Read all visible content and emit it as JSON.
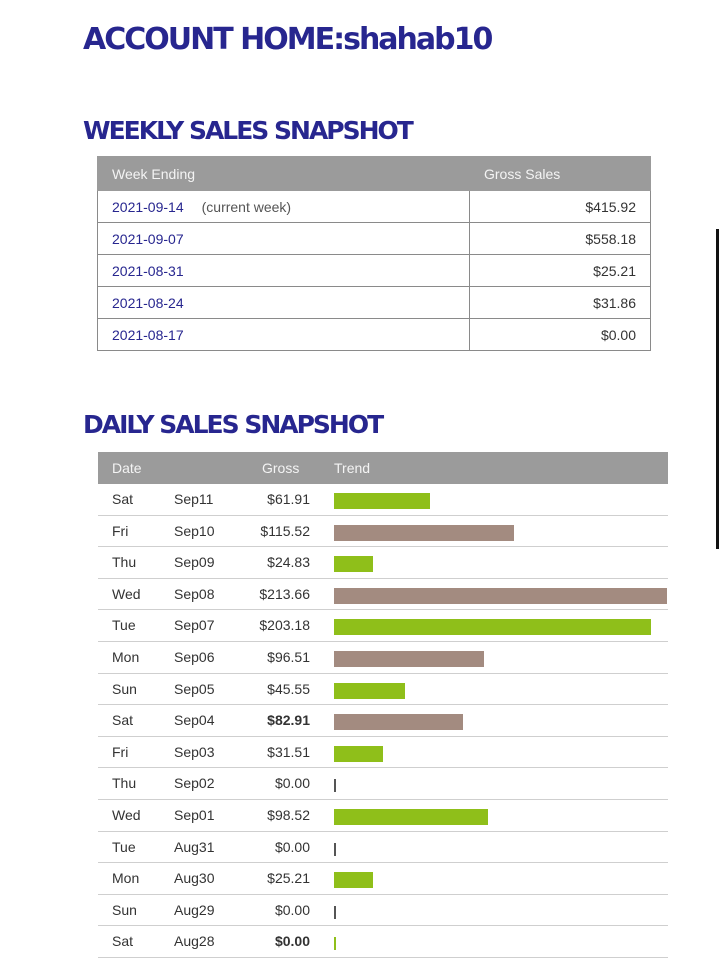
{
  "page": {
    "title": "ACCOUNT HOME:shahab10"
  },
  "weekly": {
    "heading": "WEEKLY SALES SNAPSHOT",
    "columns": {
      "week_ending": "Week Ending",
      "gross_sales": "Gross Sales"
    },
    "rows": [
      {
        "week": "2021-09-14",
        "note": "(current week)",
        "sales": "$415.92"
      },
      {
        "week": "2021-09-07",
        "note": "",
        "sales": "$558.18"
      },
      {
        "week": "2021-08-31",
        "note": "",
        "sales": "$25.21"
      },
      {
        "week": "2021-08-24",
        "note": "",
        "sales": "$31.86"
      },
      {
        "week": "2021-08-17",
        "note": "",
        "sales": "$0.00"
      }
    ]
  },
  "daily": {
    "heading": "DAILY SALES SNAPSHOT",
    "columns": {
      "date": "Date",
      "gross": "Gross",
      "trend": "Trend"
    },
    "colors": {
      "green": "#8fbf1a",
      "taupe": "#a38b80"
    },
    "max_gross": 213.66,
    "rows": [
      {
        "dow": "Sat",
        "date": "Sep11",
        "gross": "$61.91",
        "value": 61.91,
        "bold": false,
        "color": "green"
      },
      {
        "dow": "Fri",
        "date": "Sep10",
        "gross": "$115.52",
        "value": 115.52,
        "bold": false,
        "color": "taupe"
      },
      {
        "dow": "Thu",
        "date": "Sep09",
        "gross": "$24.83",
        "value": 24.83,
        "bold": false,
        "color": "green"
      },
      {
        "dow": "Wed",
        "date": "Sep08",
        "gross": "$213.66",
        "value": 213.66,
        "bold": false,
        "color": "taupe"
      },
      {
        "dow": "Tue",
        "date": "Sep07",
        "gross": "$203.18",
        "value": 203.18,
        "bold": false,
        "color": "green"
      },
      {
        "dow": "Mon",
        "date": "Sep06",
        "gross": "$96.51",
        "value": 96.51,
        "bold": false,
        "color": "taupe"
      },
      {
        "dow": "Sun",
        "date": "Sep05",
        "gross": "$45.55",
        "value": 45.55,
        "bold": false,
        "color": "green"
      },
      {
        "dow": "Sat",
        "date": "Sep04",
        "gross": "$82.91",
        "value": 82.91,
        "bold": true,
        "color": "taupe"
      },
      {
        "dow": "Fri",
        "date": "Sep03",
        "gross": "$31.51",
        "value": 31.51,
        "bold": false,
        "color": "green"
      },
      {
        "dow": "Thu",
        "date": "Sep02",
        "gross": "$0.00",
        "value": 0,
        "bold": false,
        "color": "taupe"
      },
      {
        "dow": "Wed",
        "date": "Sep01",
        "gross": "$98.52",
        "value": 98.52,
        "bold": false,
        "color": "green"
      },
      {
        "dow": "Tue",
        "date": "Aug31",
        "gross": "$0.00",
        "value": 0,
        "bold": false,
        "color": "taupe"
      },
      {
        "dow": "Mon",
        "date": "Aug30",
        "gross": "$25.21",
        "value": 25.21,
        "bold": false,
        "color": "green"
      },
      {
        "dow": "Sun",
        "date": "Aug29",
        "gross": "$0.00",
        "value": 0,
        "bold": false,
        "color": "taupe"
      },
      {
        "dow": "Sat",
        "date": "Aug28",
        "gross": "$0.00",
        "value": 0,
        "bold": true,
        "color": "green"
      }
    ]
  }
}
